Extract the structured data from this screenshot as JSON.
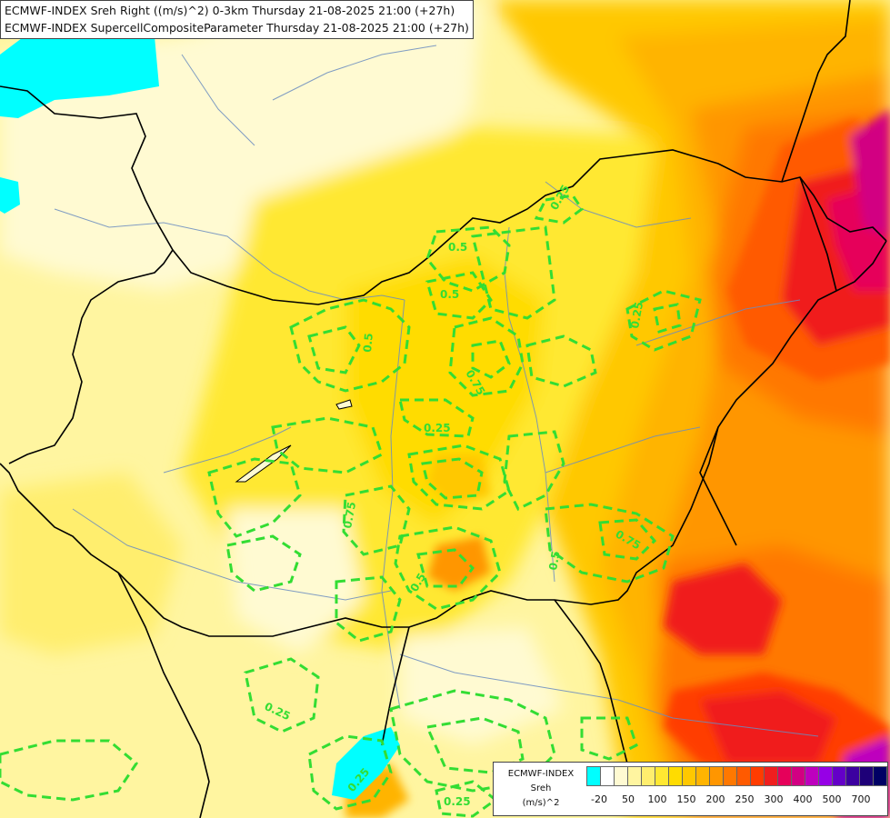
{
  "header": {
    "line1": "ECMWF-INDEX Sreh Right ((m/s)^2) 0-3km Thursday 21-08-2025 21:00 (+27h)",
    "line2": "ECMWF-INDEX SupercellCompositeParameter Thursday 21-08-2025 21:00 (+27h)"
  },
  "legend": {
    "source": "ECMWF-INDEX",
    "variable": "Sreh",
    "unit": "(m/s)^2",
    "colors": [
      "#00ffff",
      "#ffffff",
      "#fffad2",
      "#fff5a0",
      "#ffee6e",
      "#ffe832",
      "#ffdc00",
      "#ffc800",
      "#ffb400",
      "#ff9600",
      "#ff7800",
      "#ff5a00",
      "#ff3c00",
      "#f01e1e",
      "#e6005a",
      "#d20082",
      "#be00be",
      "#9600e6",
      "#6400c8",
      "#3c00a0",
      "#1e0078",
      "#000064"
    ],
    "tick_labels": [
      "-20",
      "50",
      "100",
      "150",
      "200",
      "250",
      "300",
      "400",
      "500",
      "700"
    ]
  },
  "contours": {
    "color": "#33dd33",
    "labels": [
      {
        "text": "0.25"
      },
      {
        "text": "0.5"
      },
      {
        "text": "0.25"
      },
      {
        "text": "0.5"
      },
      {
        "text": "0.25"
      },
      {
        "text": "0.75"
      },
      {
        "text": "0.25"
      },
      {
        "text": "0.75"
      },
      {
        "text": "0.75"
      },
      {
        "text": "0.5"
      },
      {
        "text": "0.5"
      },
      {
        "text": "0.25"
      },
      {
        "text": "0.25"
      },
      {
        "text": "0.25"
      }
    ]
  }
}
